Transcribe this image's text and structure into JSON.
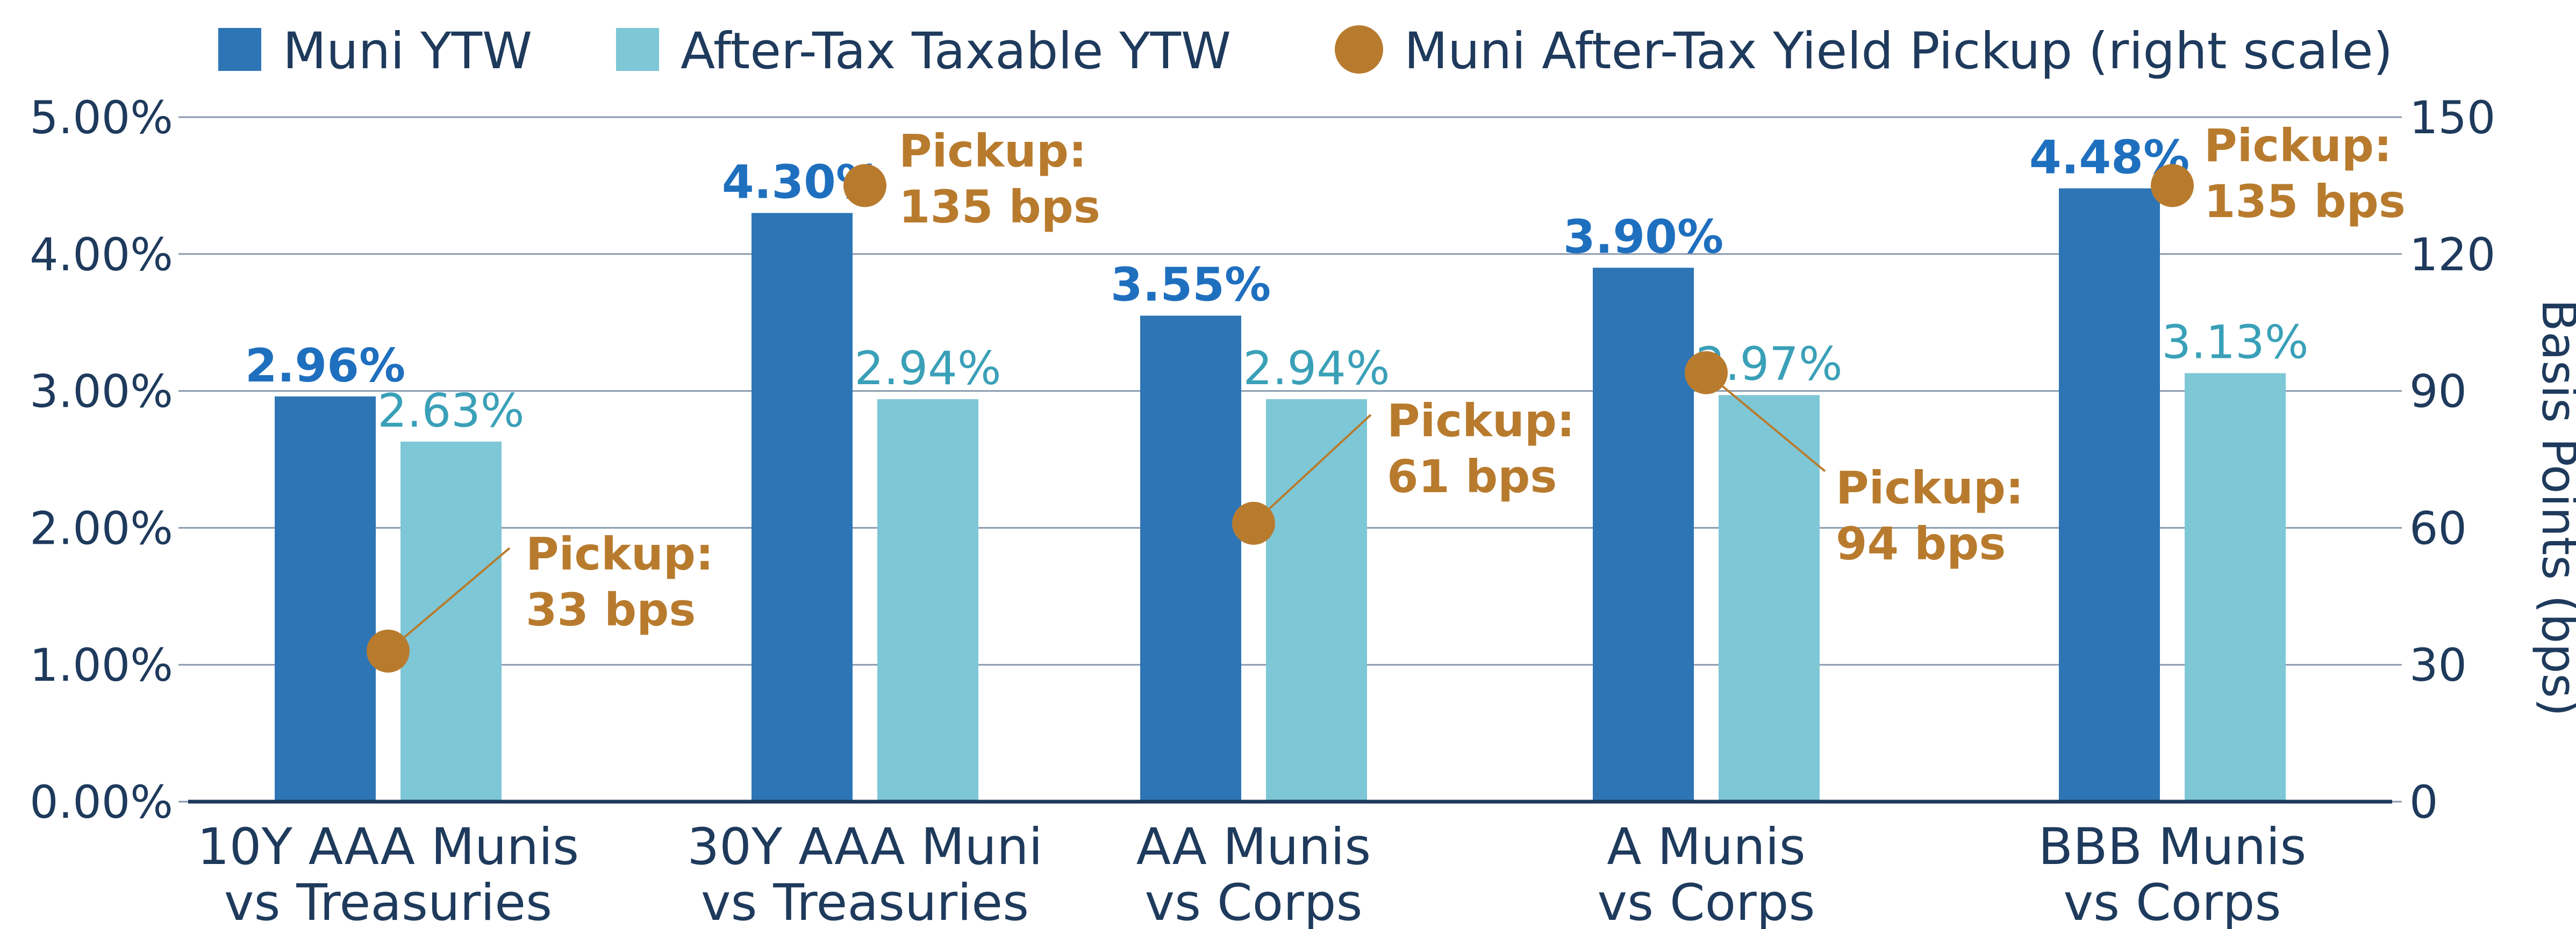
{
  "legend": {
    "muni": "Muni YTW",
    "taxable": "After-Tax Taxable YTW",
    "pickup": "Muni After-Tax Yield Pickup (right scale)"
  },
  "axes": {
    "left_ticks": [
      "0.00%",
      "1.00%",
      "2.00%",
      "3.00%",
      "4.00%",
      "5.00%"
    ],
    "right_ticks": [
      "0",
      "30",
      "60",
      "90",
      "120",
      "150"
    ],
    "right_title": "Basis Points (bps)"
  },
  "colors": {
    "muni": "#2e75b6",
    "taxable": "#7ec7d6",
    "pickup": "#b87b2e",
    "muni_label": "#1f6fbf",
    "taxable_label": "#3aa0b8",
    "grid": "#8a9aae",
    "axis": "#1e3a5c"
  },
  "chart_data": {
    "type": "bar",
    "categories": [
      "10Y AAA Munis vs Treasuries",
      "30Y AAA Muni vs Treasuries",
      "AA Munis vs Corps",
      "A Munis vs Corps",
      "BBB Munis vs Corps"
    ],
    "category_lines": [
      [
        "10Y AAA Munis",
        "vs Treasuries"
      ],
      [
        "30Y AAA Muni",
        "vs Treasuries"
      ],
      [
        "AA Munis",
        "vs Corps"
      ],
      [
        "A Munis",
        "vs Corps"
      ],
      [
        "BBB Munis",
        "vs Corps"
      ]
    ],
    "series": [
      {
        "name": "Muni YTW",
        "type": "bar",
        "axis": "left",
        "values": [
          2.96,
          4.3,
          3.55,
          3.9,
          4.48
        ],
        "labels": [
          "2.96%",
          "4.30%",
          "3.55%",
          "3.90%",
          "4.48%"
        ]
      },
      {
        "name": "After-Tax Taxable YTW",
        "type": "bar",
        "axis": "left",
        "values": [
          2.63,
          2.94,
          2.94,
          2.97,
          3.13
        ],
        "labels": [
          "2.63%",
          "2.94%",
          "2.94%",
          "2.97%",
          "3.13%"
        ]
      },
      {
        "name": "Muni After-Tax Yield Pickup (right scale)",
        "type": "scatter",
        "axis": "right",
        "values": [
          33,
          135,
          61,
          94,
          135
        ],
        "label_title": "Pickup:",
        "labels": [
          "33 bps",
          "135 bps",
          "61 bps",
          "94 bps",
          "135 bps"
        ]
      }
    ],
    "ylim_left": [
      0,
      5
    ],
    "ylim_right": [
      0,
      150
    ],
    "ylabel_right": "Basis Points (bps)",
    "grid": true,
    "legend_position": "top"
  }
}
